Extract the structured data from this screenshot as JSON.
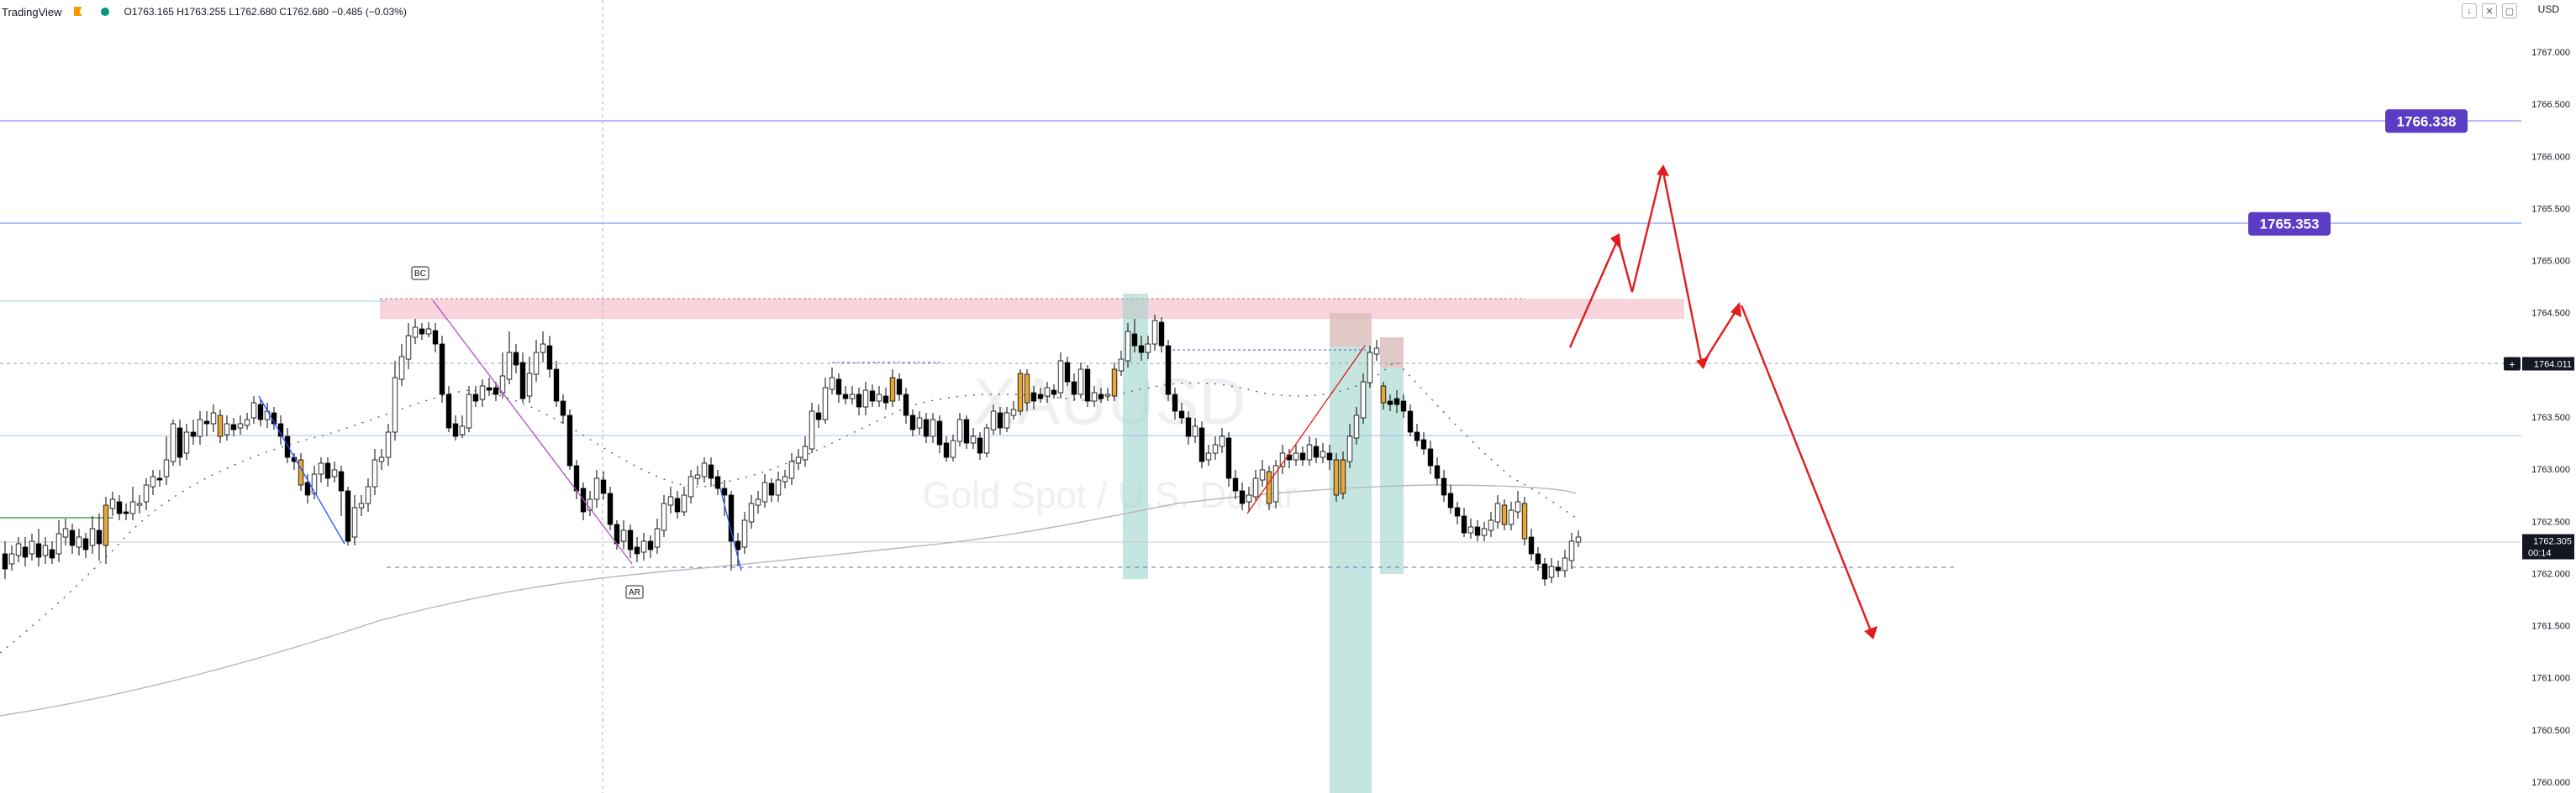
{
  "header": {
    "app_name": "TradingView",
    "ohlc_text": "O1763.165  H1763.255  L1762.680  C1762.680  −0.485 (−0.03%)",
    "currency": "USD",
    "controls": [
      "↓",
      "✕",
      "▢"
    ]
  },
  "watermark": {
    "line1": "XAUUSD",
    "line2": "Gold Spot / U.S. Dollar"
  },
  "chart_data": {
    "type": "candlestick",
    "y_axis_ticks": [
      "1767.000",
      "1766.500",
      "1766.000",
      "1765.500",
      "1765.000",
      "1764.500",
      "1764.000",
      "1763.500",
      "1763.000",
      "1762.500",
      "1762.000",
      "1761.500",
      "1761.000",
      "1760.500",
      "1760.000"
    ],
    "ylim": [
      1759.9,
      1767.45
    ],
    "price_levels": [
      {
        "label": "1766.338",
        "value": 1766.338,
        "color": "#5b3cc4"
      },
      {
        "label": "1765.353",
        "value": 1765.353,
        "color": "#5b3cc4"
      },
      {
        "label": "1764.011",
        "value": 1764.011,
        "color": "#131722"
      }
    ],
    "current_price": {
      "label": "1762.305",
      "timer": "00:14",
      "value": 1762.305
    },
    "annotations": [
      "BC",
      "AR"
    ],
    "colors": {
      "up_candle": "#ffffff",
      "down_candle": "#000000",
      "highlight_candle": "#e8a838",
      "projection": "#e21b1b",
      "level_line": "#5b7cf0",
      "supply_zone": "#f5b8c6",
      "demand_bar": "#9fd3cc"
    }
  }
}
